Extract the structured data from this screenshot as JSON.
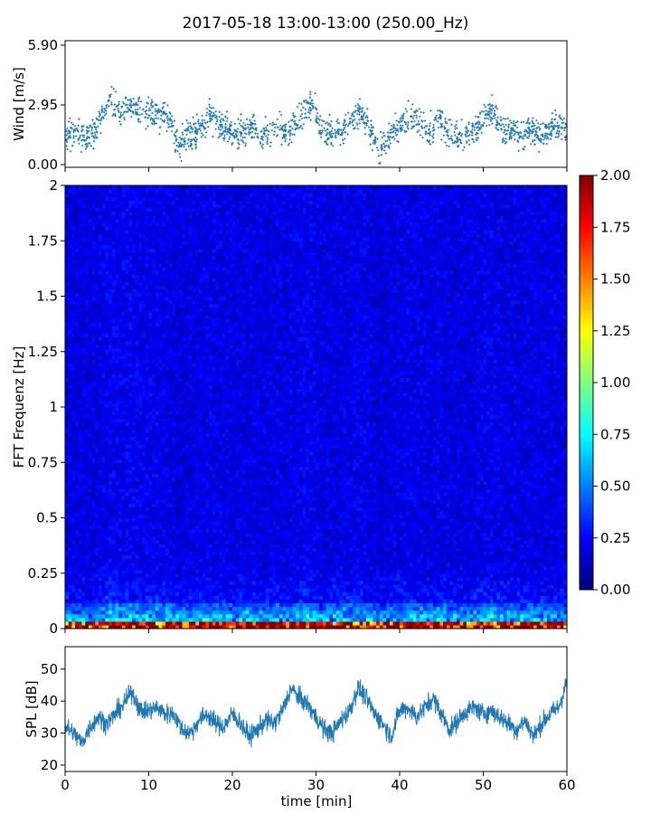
{
  "chart_data": [
    {
      "panel": "wind",
      "type": "scatter",
      "title": "2017-05-18 13:00-13:00 (250.00_Hz)",
      "ylabel": "Wind [m/s]",
      "xlabel": "",
      "xlim": [
        0,
        60
      ],
      "ylim": [
        0.0,
        5.9
      ],
      "yticks": [
        "0.00",
        "2.95",
        "5.90"
      ],
      "color": "#1f77b4",
      "x": [
        0.5,
        1.5,
        2.5,
        3.5,
        4.5,
        5.5,
        6.5,
        7.5,
        8.5,
        9.5,
        10.5,
        11.5,
        12.5,
        13.5,
        14.5,
        15.5,
        16.5,
        17.5,
        18.5,
        19.5,
        20.5,
        21.5,
        22.5,
        23.5,
        24.5,
        25.5,
        26.5,
        27.5,
        28.5,
        29.5,
        30.5,
        31.5,
        32.5,
        33.5,
        34.5,
        35.5,
        36.5,
        37.5,
        38.5,
        39.5,
        40.5,
        41.5,
        42.5,
        43.5,
        44.5,
        45.5,
        46.5,
        47.5,
        48.5,
        49.5,
        50.5,
        51.5,
        52.5,
        53.5,
        54.5,
        55.5,
        56.5,
        57.5,
        58.5,
        59.5
      ],
      "y": [
        1.5,
        1.4,
        1.3,
        1.6,
        2.5,
        3.2,
        2.6,
        3.0,
        2.7,
        2.4,
        2.5,
        2.4,
        2.2,
        0.9,
        1.4,
        1.6,
        2.0,
        2.3,
        2.0,
        1.8,
        1.4,
        1.7,
        1.9,
        1.4,
        1.6,
        1.8,
        1.5,
        1.9,
        2.5,
        3.1,
        1.7,
        1.6,
        1.6,
        1.8,
        2.3,
        2.6,
        1.7,
        0.8,
        1.2,
        1.7,
        2.0,
        2.3,
        2.1,
        1.5,
        2.4,
        1.8,
        1.5,
        1.4,
        1.6,
        1.9,
        2.8,
        2.4,
        1.6,
        1.9,
        1.4,
        1.8,
        1.5,
        1.6,
        1.9,
        1.7
      ]
    },
    {
      "panel": "spectrogram",
      "type": "heatmap",
      "ylabel": "FFT Frequenz [Hz]",
      "xlim": [
        0,
        60
      ],
      "ylim": [
        0,
        2
      ],
      "yticks": [
        "0",
        "0.25",
        "0.5",
        "0.75",
        "1",
        "1.25",
        "1.5",
        "1.75",
        "2"
      ],
      "colormap": "jet",
      "colorbar": {
        "ticks": [
          "0.00",
          "0.25",
          "0.50",
          "0.75",
          "1.00",
          "1.25",
          "1.50",
          "1.75",
          "2.00"
        ],
        "range": [
          0.0,
          2.0
        ]
      }
    },
    {
      "panel": "spl",
      "type": "line",
      "ylabel": "SPL [dB]",
      "xlabel": "time [min]",
      "xlim": [
        0,
        60
      ],
      "ylim": [
        18,
        57
      ],
      "xticks": [
        "0",
        "10",
        "20",
        "30",
        "40",
        "50",
        "60"
      ],
      "yticks": [
        "20",
        "30",
        "40",
        "50"
      ],
      "color": "#1f77b4",
      "x": [
        0,
        1,
        2,
        3,
        4,
        5,
        6,
        7,
        8,
        9,
        10,
        11,
        12,
        13,
        14,
        15,
        16,
        17,
        18,
        19,
        20,
        21,
        22,
        23,
        24,
        25,
        26,
        27,
        28,
        29,
        30,
        31,
        32,
        33,
        34,
        35,
        36,
        37,
        38,
        39,
        40,
        41,
        42,
        43,
        44,
        45,
        46,
        47,
        48,
        49,
        50,
        51,
        52,
        53,
        54,
        55,
        56,
        57,
        58,
        59,
        60
      ],
      "y": [
        32,
        30,
        27,
        32,
        35,
        33,
        36,
        39,
        43,
        37,
        37,
        38,
        36,
        36,
        31,
        30,
        34,
        36,
        33,
        32,
        36,
        33,
        29,
        31,
        34,
        33,
        37,
        44,
        41,
        39,
        35,
        31,
        30,
        34,
        37,
        44,
        41,
        36,
        33,
        29,
        37,
        38,
        35,
        38,
        41,
        36,
        31,
        34,
        37,
        38,
        36,
        37,
        35,
        33,
        31,
        34,
        29,
        33,
        36,
        38,
        46
      ]
    }
  ]
}
